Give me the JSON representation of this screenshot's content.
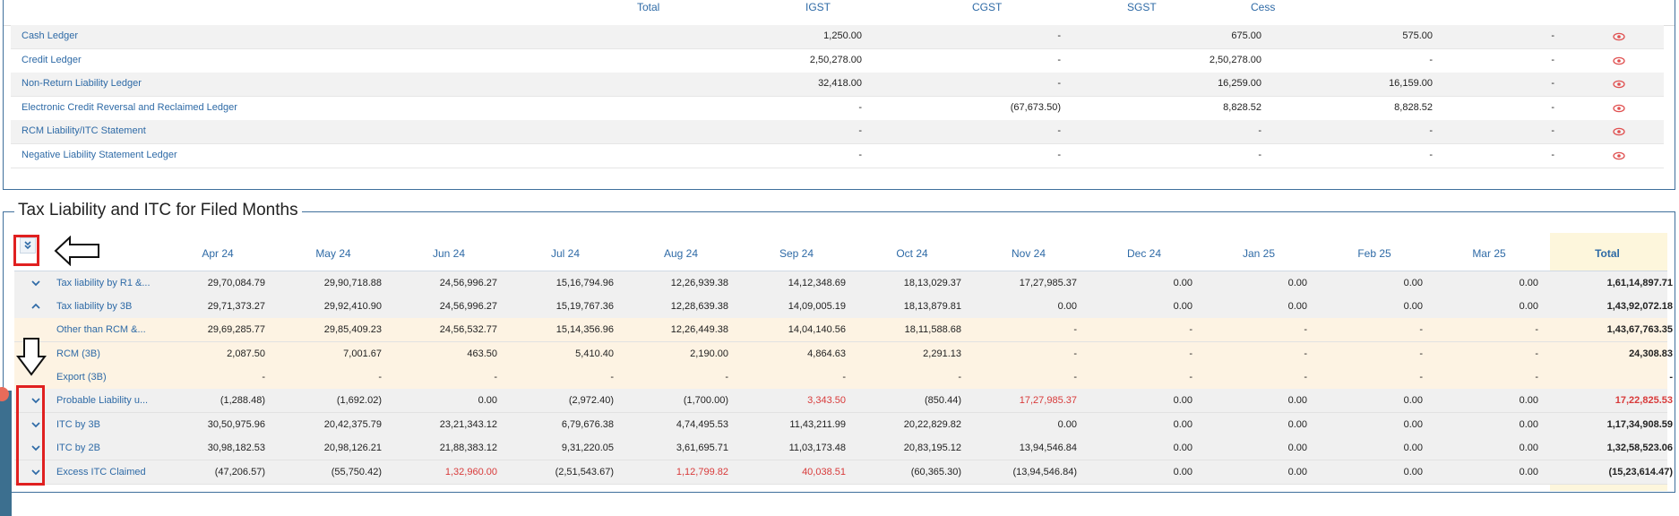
{
  "ledger": {
    "headers": [
      "Total",
      "IGST",
      "CGST",
      "SGST",
      "Cess"
    ],
    "rows": [
      {
        "name": "Cash Ledger",
        "total": "1,250.00",
        "igst": "-",
        "cgst": "675.00",
        "sgst": "575.00",
        "cess": "-"
      },
      {
        "name": "Credit Ledger",
        "total": "2,50,278.00",
        "igst": "-",
        "cgst": "2,50,278.00",
        "sgst": "-",
        "cess": "-"
      },
      {
        "name": "Non-Return Liability Ledger",
        "total": "32,418.00",
        "igst": "-",
        "cgst": "16,259.00",
        "sgst": "16,159.00",
        "cess": "-"
      },
      {
        "name": "Electronic Credit Reversal and Reclaimed Ledger",
        "total": "-",
        "igst": "(67,673.50)",
        "cgst": "8,828.52",
        "sgst": "8,828.52",
        "cess": "-"
      },
      {
        "name": "RCM Liability/ITC Statement",
        "total": "-",
        "igst": "-",
        "cgst": "-",
        "sgst": "-",
        "cess": "-"
      },
      {
        "name": "Negative Liability Statement Ledger",
        "total": "-",
        "igst": "-",
        "cgst": "-",
        "sgst": "-",
        "cess": "-"
      }
    ],
    "view_icon": "eye-icon"
  },
  "tax": {
    "title": "Tax Liability and ITC for Filed Months",
    "months": [
      "Apr 24",
      "May 24",
      "Jun 24",
      "Jul 24",
      "Aug 24",
      "Sep 24",
      "Oct 24",
      "Nov 24",
      "Dec 24",
      "Jan 25",
      "Feb 25",
      "Mar 25"
    ],
    "total_label": "Total",
    "rows": [
      {
        "label": "Tax liability by R1 &...",
        "toggle": "chevron-down",
        "values": [
          "29,70,084.79",
          "29,90,718.88",
          "24,56,996.27",
          "15,16,794.96",
          "12,26,939.38",
          "14,12,348.69",
          "18,13,029.37",
          "17,27,985.37",
          "0.00",
          "0.00",
          "0.00",
          "0.00"
        ],
        "total": "1,61,14,897.71"
      },
      {
        "label": "Tax liability by 3B",
        "toggle": "chevron-up",
        "values": [
          "29,71,373.27",
          "29,92,410.90",
          "24,56,996.27",
          "15,19,767.36",
          "12,28,639.38",
          "14,09,005.19",
          "18,13,879.81",
          "0.00",
          "0.00",
          "0.00",
          "0.00",
          "0.00"
        ],
        "total": "1,43,92,072.18"
      },
      {
        "label": "Other than RCM &...",
        "toggle": "",
        "values": [
          "29,69,285.77",
          "29,85,409.23",
          "24,56,532.77",
          "15,14,356.96",
          "12,26,449.38",
          "14,04,140.56",
          "18,11,588.68",
          "-",
          "-",
          "-",
          "-",
          "-"
        ],
        "total": "1,43,67,763.35"
      },
      {
        "label": "RCM (3B)",
        "toggle": "",
        "values": [
          "2,087.50",
          "7,001.67",
          "463.50",
          "5,410.40",
          "2,190.00",
          "4,864.63",
          "2,291.13",
          "-",
          "-",
          "-",
          "-",
          "-"
        ],
        "total": "24,308.83"
      },
      {
        "label": "Export (3B)",
        "toggle": "",
        "values": [
          "-",
          "-",
          "-",
          "-",
          "-",
          "-",
          "-",
          "-",
          "-",
          "-",
          "-",
          "-"
        ],
        "total": "-"
      },
      {
        "label": "Probable Liability u...",
        "toggle": "chevron-down",
        "values": [
          "(1,288.48)",
          "(1,692.02)",
          "0.00",
          "(2,972.40)",
          "(1,700.00)",
          "3,343.50",
          "(850.44)",
          "17,27,985.37",
          "0.00",
          "0.00",
          "0.00",
          "0.00"
        ],
        "red": [
          5,
          7
        ],
        "total": "17,22,825.53",
        "total_red": true
      },
      {
        "label": "ITC by 3B",
        "toggle": "chevron-down",
        "values": [
          "30,50,975.96",
          "20,42,375.79",
          "23,21,343.12",
          "6,79,676.38",
          "4,74,495.53",
          "11,43,211.99",
          "20,22,829.82",
          "0.00",
          "0.00",
          "0.00",
          "0.00",
          "0.00"
        ],
        "total": "1,17,34,908.59"
      },
      {
        "label": "ITC by 2B",
        "toggle": "chevron-down",
        "values": [
          "30,98,182.53",
          "20,98,126.21",
          "21,88,383.12",
          "9,31,220.05",
          "3,61,695.71",
          "11,03,173.48",
          "20,83,195.12",
          "13,94,546.84",
          "0.00",
          "0.00",
          "0.00",
          "0.00"
        ],
        "total": "1,32,58,523.06"
      },
      {
        "label": "Excess ITC Claimed",
        "toggle": "chevron-down",
        "values": [
          "(47,206.57)",
          "(55,750.42)",
          "1,32,960.00",
          "(2,51,543.67)",
          "1,12,799.82",
          "40,038.51",
          "(60,365.30)",
          "(13,94,546.84)",
          "0.00",
          "0.00",
          "0.00",
          "0.00"
        ],
        "red": [
          2,
          4,
          5
        ],
        "total": "(15,23,614.47)"
      }
    ]
  },
  "colors": {
    "link": "#2e6aa6",
    "negative": "#d83a3a",
    "highlight": "#e02020",
    "total_bg": "#fdf6dc"
  }
}
